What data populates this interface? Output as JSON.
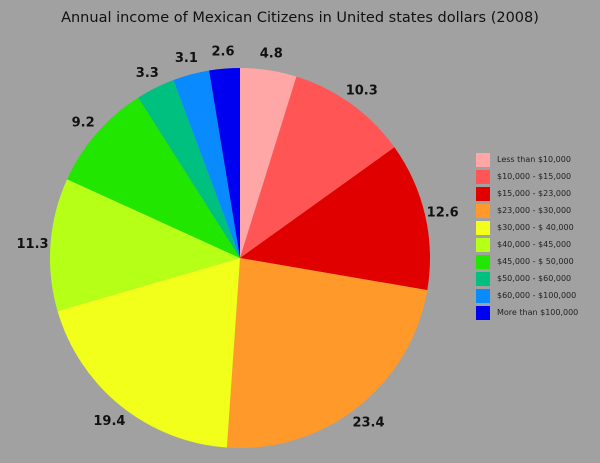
{
  "chart_data": {
    "type": "pie",
    "title": "Annual income of Mexican Citizens in United states dollars (2008)",
    "start_angle": "top, clockwise",
    "legend_position": "right",
    "categories": [
      "Less than $10,000",
      "$10,000 - $15,000",
      "$15,000 - $23,000",
      "$23,000 - $30,000",
      "$30,000 - $ 40,000",
      "$40,000 - $45,000",
      "$45,000 - $ 50,000",
      "$50,000 - $60,000",
      "$60,000 - $100,000",
      "More than $100,000"
    ],
    "values": [
      4.8,
      10.3,
      12.6,
      23.4,
      19.4,
      11.3,
      9.2,
      3.3,
      3.1,
      2.6
    ],
    "data_labels": [
      "4.8",
      "10.3",
      "12.6",
      "23.4",
      "19.4",
      "11.3",
      "9.2",
      "3.3",
      "3.1",
      "2.6"
    ],
    "colors": [
      "#ffa6a6",
      "#ff5555",
      "#e00000",
      "#ff9a2a",
      "#f2ff1a",
      "#b6ff16",
      "#20e600",
      "#00c080",
      "#0a8aff",
      "#0000f0"
    ]
  }
}
